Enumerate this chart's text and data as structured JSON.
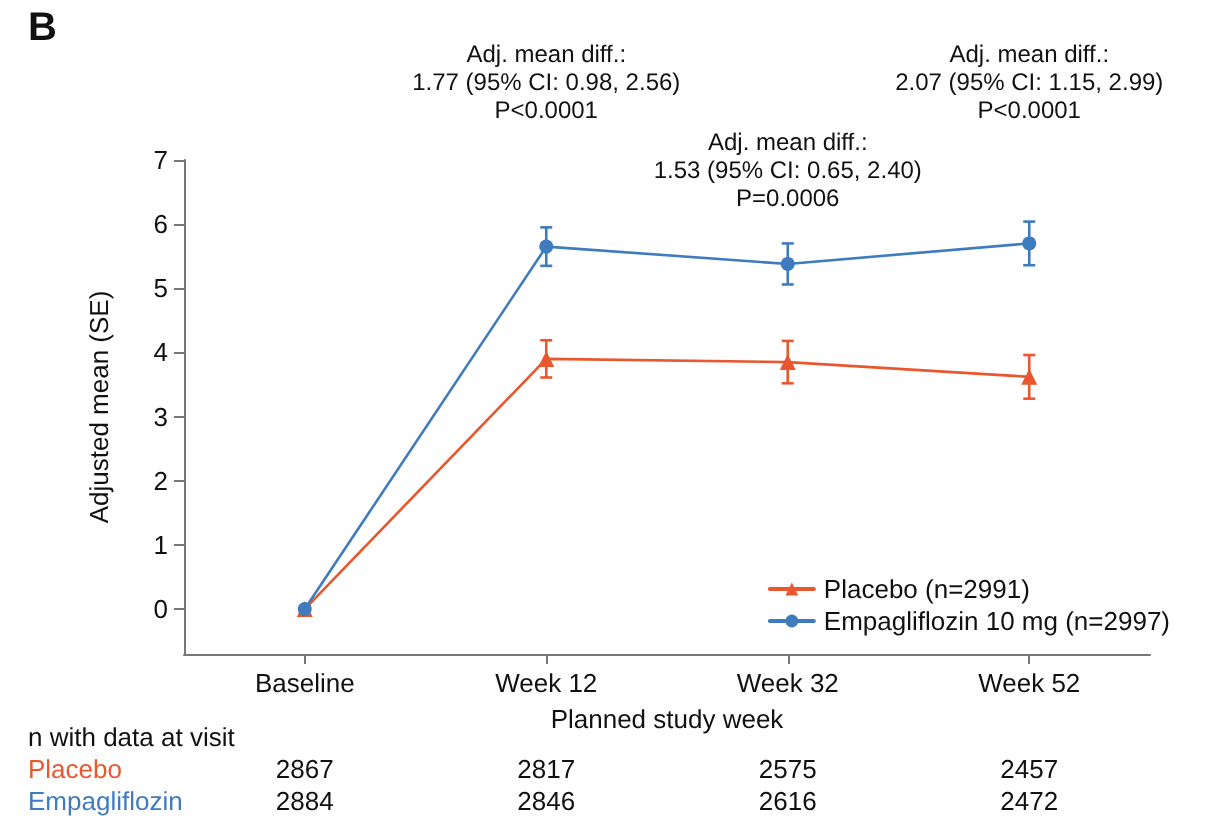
{
  "chart_data": {
    "type": "line",
    "xlabel": "Planned study week",
    "ylabel": "Adjusted mean (SE)",
    "categories": [
      "Baseline",
      "Week 12",
      "Week 32",
      "Week 52"
    ],
    "ylim": [
      -0.7,
      7
    ],
    "yticks": [
      0,
      1,
      2,
      3,
      4,
      5,
      6,
      7
    ],
    "series": [
      {
        "name": "Placebo (n=2991)",
        "color": "#e8572e",
        "marker": "triangle",
        "values": [
          0,
          3.9,
          3.85,
          3.62
        ],
        "errors": [
          null,
          0.29,
          0.33,
          0.34
        ]
      },
      {
        "name": "Empagliflozin 10 mg (n=2997)",
        "color": "#3f7bbf",
        "marker": "circle",
        "values": [
          0,
          5.65,
          5.38,
          5.7
        ],
        "errors": [
          null,
          0.3,
          0.32,
          0.34
        ]
      }
    ],
    "grid": false,
    "legend": "bottom right",
    "annotations": [
      "B",
      "n with data at visit",
      "Placebo",
      "Empagliflozin",
      "Adj. mean diff.:\n1.77 (95% CI: 0.98, 2.56)\nP<0.0001",
      "Adj. mean diff.:\n1.53 (95% CI: 0.65, 2.40)\nP=0.0006",
      "Adj. mean diff.:\n2.07 (95% CI: 1.15, 2.99)\nP<0.0001",
      "2867",
      "2817",
      "2575",
      "2457",
      "2884",
      "2846",
      "2616",
      "2472"
    ]
  }
}
